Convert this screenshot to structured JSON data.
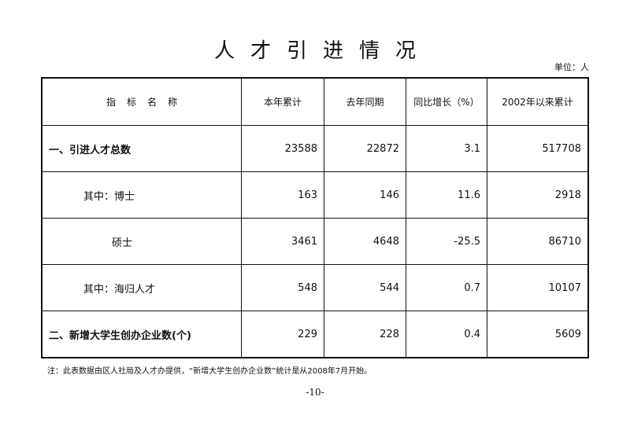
{
  "title": "人才引进情况",
  "unit": "单位：人",
  "table": {
    "header": [
      "指标名称",
      "本年累计",
      "去年同期",
      "同比增长（%）",
      "2002年以来累计"
    ],
    "rows": [
      [
        "一、引进人才总数",
        23588,
        22872,
        3.1,
        517708
      ],
      [
        "其中：博士",
        163,
        146,
        11.6,
        2918
      ],
      [
        "硕士",
        3461,
        4648,
        -25.5,
        86710
      ],
      [
        "其中：海归人才",
        548,
        544,
        0.7,
        10107
      ],
      [
        "二、新增大学生创办企业数(个)",
        229,
        228,
        0.4,
        5609
      ]
    ]
  },
  "note": "注：此表数据由区人社局及人才办提供，“新增大学生创办企业数”统计是从2008年7月开始。",
  "page_number": "-10-"
}
